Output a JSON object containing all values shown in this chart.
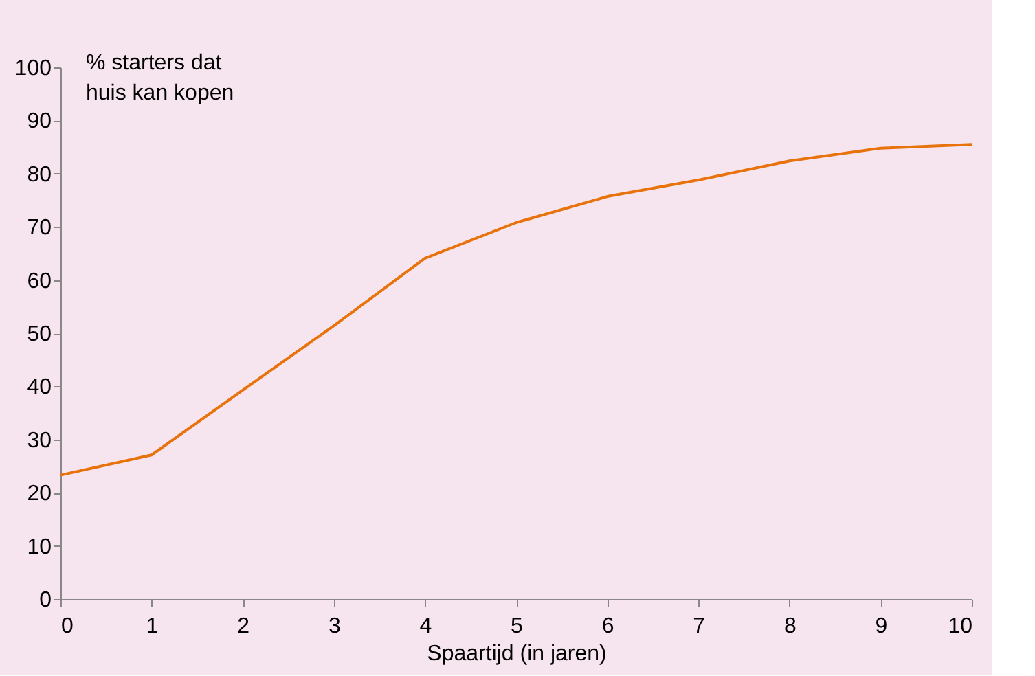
{
  "chart_data": {
    "type": "line",
    "xlabel": "Spaartijd (in jaren)",
    "ylabel": "% starters dat\nhuis kan kopen",
    "x": [
      0,
      1,
      2,
      3,
      4,
      5,
      6,
      7,
      8,
      9,
      10
    ],
    "series": [
      {
        "color": "#e8720c",
        "values": [
          23.3,
          27.1,
          39.3,
          51.4,
          64.1,
          70.8,
          75.7,
          78.8,
          82.4,
          84.8,
          85.5
        ]
      }
    ],
    "xlim": [
      0,
      10
    ],
    "xticks": [
      0,
      1,
      2,
      3,
      4,
      5,
      6,
      7,
      8,
      9,
      10
    ],
    "ylim": [
      0,
      100
    ],
    "yticks": [
      0,
      10,
      20,
      30,
      40,
      50,
      60,
      70,
      80,
      90,
      100
    ],
    "grid": false,
    "legend": false,
    "marker": "none",
    "line_style": "solid"
  }
}
